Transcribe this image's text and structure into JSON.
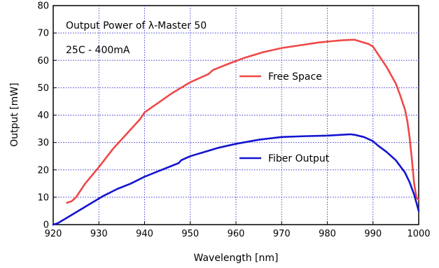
{
  "chart_data": {
    "type": "line",
    "title": "",
    "xlabel": "Wavelength [nm]",
    "ylabel": "Output [mW]",
    "xlim": [
      920,
      1000
    ],
    "ylim": [
      0,
      80
    ],
    "xticks": [
      920,
      930,
      940,
      950,
      960,
      970,
      980,
      990,
      1000
    ],
    "yticks": [
      0,
      10,
      20,
      30,
      40,
      50,
      60,
      70,
      80
    ],
    "grid": true,
    "annotations": [
      "Output Power of λ-Master 50",
      "25C - 400mA"
    ],
    "legend_placement": "inline labels inside plot",
    "series": [
      {
        "name": "Free Space",
        "color": "#f04848",
        "x": [
          923,
          924,
          925,
          927,
          930,
          933,
          936,
          939,
          940,
          943,
          946,
          948,
          950,
          952,
          954,
          955,
          958,
          962,
          966,
          970,
          974,
          978,
          981,
          983,
          985,
          986,
          987,
          988,
          989,
          990,
          991,
          993,
          995,
          996,
          997,
          997.5,
          998,
          998.5,
          999,
          999.5,
          1000
        ],
        "y": [
          8,
          8.5,
          10,
          15,
          21,
          27.5,
          33,
          38.5,
          41,
          44.5,
          48,
          50,
          52,
          53.5,
          55,
          56.5,
          58.5,
          61,
          63,
          64.5,
          65.5,
          66.5,
          67,
          67.3,
          67.5,
          67.5,
          67,
          66.5,
          66,
          65,
          62.5,
          57.5,
          51.5,
          47,
          42,
          38,
          32,
          24,
          15,
          10,
          9
        ]
      },
      {
        "name": "Fiber Output",
        "color": "#1414d0",
        "x": [
          920,
          921,
          922,
          923,
          925,
          928,
          931,
          934,
          937,
          940,
          943,
          946,
          947.5,
          948,
          950,
          953,
          956,
          960,
          965,
          970,
          975,
          980,
          983,
          985,
          986,
          988,
          990,
          991,
          993,
          995,
          997,
          998,
          999,
          999.5,
          1000
        ],
        "y": [
          0,
          0.5,
          1.5,
          2.5,
          4.5,
          7.5,
          10.5,
          13,
          15,
          17.5,
          19.5,
          21.5,
          22.5,
          23.5,
          25,
          26.5,
          28,
          29.5,
          31,
          32,
          32.3,
          32.5,
          32.8,
          33,
          32.8,
          32,
          30.5,
          29,
          26.5,
          23.5,
          19,
          15.5,
          11,
          8,
          5
        ]
      }
    ]
  }
}
